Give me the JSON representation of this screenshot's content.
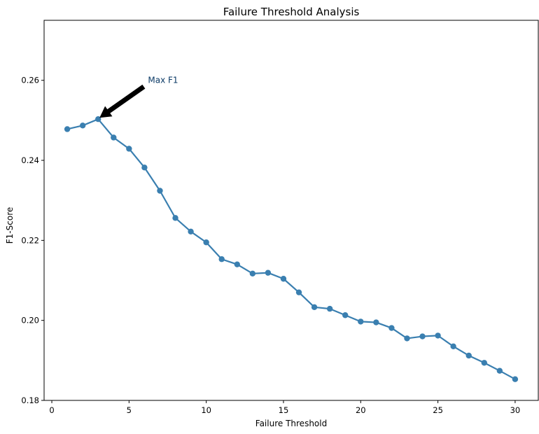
{
  "chart_data": {
    "type": "line",
    "title": "Failure Threshold Analysis",
    "xlabel": "Failure Threshold",
    "ylabel": "F1-Score",
    "xlim": [
      -0.5,
      31.5
    ],
    "ylim": [
      0.18,
      0.275
    ],
    "xticks": [
      0,
      5,
      10,
      15,
      20,
      25,
      30
    ],
    "yticks": [
      0.18,
      0.2,
      0.22,
      0.24,
      0.26
    ],
    "xtick_labels": [
      "0",
      "5",
      "10",
      "15",
      "20",
      "25",
      "30"
    ],
    "ytick_labels": [
      "0.18",
      "0.20",
      "0.22",
      "0.24",
      "0.26"
    ],
    "grid": false,
    "series": [
      {
        "color": "#3a7fb0",
        "x": [
          1,
          2,
          3,
          4,
          5,
          6,
          7,
          8,
          9,
          10,
          11,
          12,
          13,
          14,
          15,
          16,
          17,
          18,
          19,
          20,
          21,
          22,
          23,
          24,
          25,
          26,
          27,
          28,
          29,
          30
        ],
        "y": [
          0.2478,
          0.2487,
          0.2503,
          0.2457,
          0.2429,
          0.2382,
          0.2324,
          0.2256,
          0.2222,
          0.2195,
          0.2153,
          0.214,
          0.2117,
          0.2119,
          0.2104,
          0.207,
          0.2033,
          0.2029,
          0.2013,
          0.1997,
          0.1995,
          0.1981,
          0.1955,
          0.196,
          0.1962,
          0.1935,
          0.1912,
          0.1894,
          0.1874,
          0.1853
        ]
      }
    ],
    "annotation": {
      "text": "Max F1",
      "point": [
        3,
        0.2503
      ],
      "text_at": [
        6,
        0.26
      ]
    }
  }
}
